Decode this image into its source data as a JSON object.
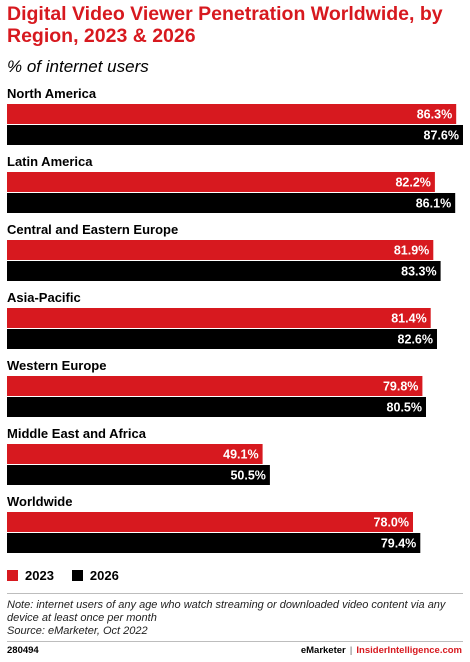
{
  "header": {
    "title": "Digital Video Viewer Penetration Worldwide, by Region, 2023 & 2026",
    "subtitle": "% of internet users"
  },
  "chart_data": {
    "type": "bar",
    "orientation": "horizontal",
    "title": "Digital Video Viewer Penetration Worldwide, by Region, 2023 & 2026",
    "subtitle": "% of internet users",
    "categories": [
      "North America",
      "Latin America",
      "Central and Eastern Europe",
      "Asia-Pacific",
      "Western Europe",
      "Middle East and Africa",
      "Worldwide"
    ],
    "series": [
      {
        "name": "2023",
        "color": "#d7191f",
        "values": [
          86.3,
          82.2,
          81.9,
          81.4,
          79.8,
          49.1,
          78.0
        ],
        "labels": [
          "86.3%",
          "82.2%",
          "81.9%",
          "81.4%",
          "79.8%",
          "49.1%",
          "78.0%"
        ]
      },
      {
        "name": "2026",
        "color": "#000000",
        "values": [
          87.6,
          86.1,
          83.3,
          82.6,
          80.5,
          50.5,
          79.4
        ],
        "labels": [
          "87.6%",
          "86.1%",
          "83.3%",
          "82.6%",
          "80.5%",
          "50.5%",
          "79.4%"
        ]
      }
    ],
    "xlim": [
      0,
      87.6
    ],
    "grid": false,
    "legend": "bottom-left"
  },
  "legend": {
    "items": [
      {
        "label": "2023",
        "color": "#d7191f"
      },
      {
        "label": "2026",
        "color": "#000000"
      }
    ]
  },
  "note": "Note: internet users of any age who watch streaming or downloaded video content via any device at least once per month",
  "source": "Source: eMarketer, Oct 2022",
  "footer": {
    "id": "280494",
    "brand": "eMarketer",
    "separator": "|",
    "brand2": "InsiderIntelligence.com"
  }
}
